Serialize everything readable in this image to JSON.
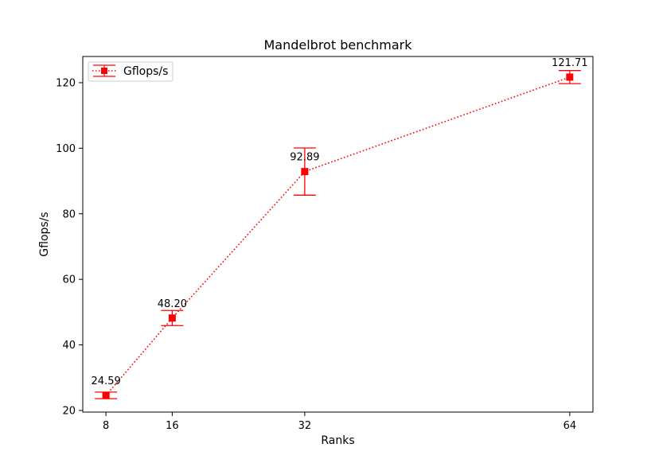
{
  "chart_data": {
    "type": "line",
    "title": "Mandelbrot benchmark",
    "xlabel": "Ranks",
    "ylabel": "Gflops/s",
    "x": [
      8,
      16,
      32,
      64
    ],
    "x_ticks": [
      "8",
      "16",
      "32",
      "64"
    ],
    "xlim": [
      5.2,
      66.8
    ],
    "ylim": [
      19.5,
      128.0
    ],
    "y_ticks": [
      20,
      40,
      60,
      80,
      100,
      120
    ],
    "grid": false,
    "legend_position": "top-left",
    "series": [
      {
        "name": "Gflops/s",
        "values": [
          24.59,
          48.2,
          92.89,
          121.71
        ],
        "error": [
          1.0,
          2.3,
          7.2,
          2.0
        ],
        "labels": [
          "24.59",
          "48.20",
          "92.89",
          "121.71"
        ],
        "color": "#ff0000",
        "line_style": "dotted",
        "marker": "square"
      }
    ]
  }
}
